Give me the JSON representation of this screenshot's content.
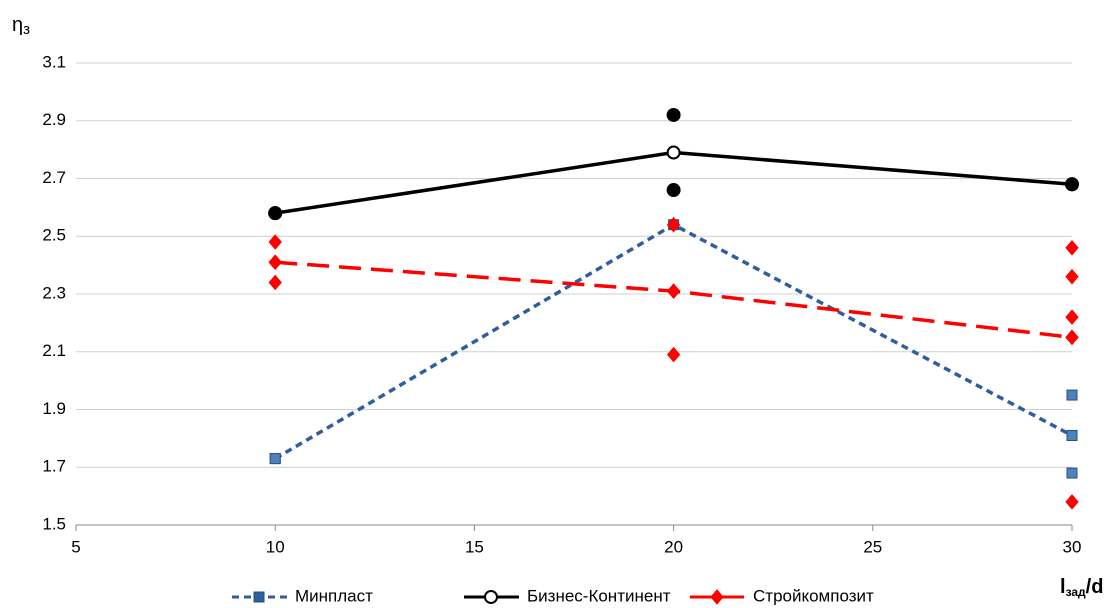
{
  "chart_data": {
    "type": "line",
    "y_label": [
      "η",
      "з"
    ],
    "x_label": [
      "l",
      "зад",
      "/d"
    ],
    "xlim": [
      5,
      30
    ],
    "xticks": [
      5,
      10,
      15,
      20,
      25,
      30
    ],
    "ylim": [
      1.5,
      3.1
    ],
    "yticks": [
      1.5,
      1.7,
      1.9,
      2.1,
      2.3,
      2.5,
      2.7,
      2.9,
      3.1
    ],
    "grid": true,
    "legend": "bottom",
    "series": [
      {
        "name": "Минпласт",
        "color": "#2f5d9e",
        "point_color": "#4f81bd",
        "marker": "square",
        "dash": "short",
        "x": [
          10,
          20,
          30
        ],
        "values": [
          1.73,
          2.54,
          1.81
        ],
        "points": {
          "x": [
            10,
            30,
            30,
            30
          ],
          "y": [
            1.73,
            1.95,
            1.81,
            1.68
          ]
        }
      },
      {
        "name": "Бизнес-Континент",
        "color": "#000000",
        "point_color": "#000000",
        "marker": "circle",
        "dash": "solid",
        "x": [
          10,
          20,
          30
        ],
        "values": [
          2.58,
          2.79,
          2.68
        ],
        "points": {
          "x": [
            10,
            20,
            20,
            30
          ],
          "y": [
            2.58,
            2.92,
            2.66,
            2.68
          ]
        }
      },
      {
        "name": "Стройкомпозит",
        "color": "#ff0000",
        "point_color": "#ff0000",
        "marker": "diamond",
        "dash": "long",
        "x": [
          10,
          20,
          30
        ],
        "values": [
          2.41,
          2.31,
          2.15
        ],
        "points": {
          "x": [
            10,
            10,
            10,
            20,
            20,
            20,
            30,
            30,
            30,
            30,
            30
          ],
          "y": [
            2.48,
            2.41,
            2.34,
            2.54,
            2.31,
            2.09,
            2.46,
            2.36,
            2.22,
            2.15,
            1.58
          ]
        }
      }
    ]
  }
}
